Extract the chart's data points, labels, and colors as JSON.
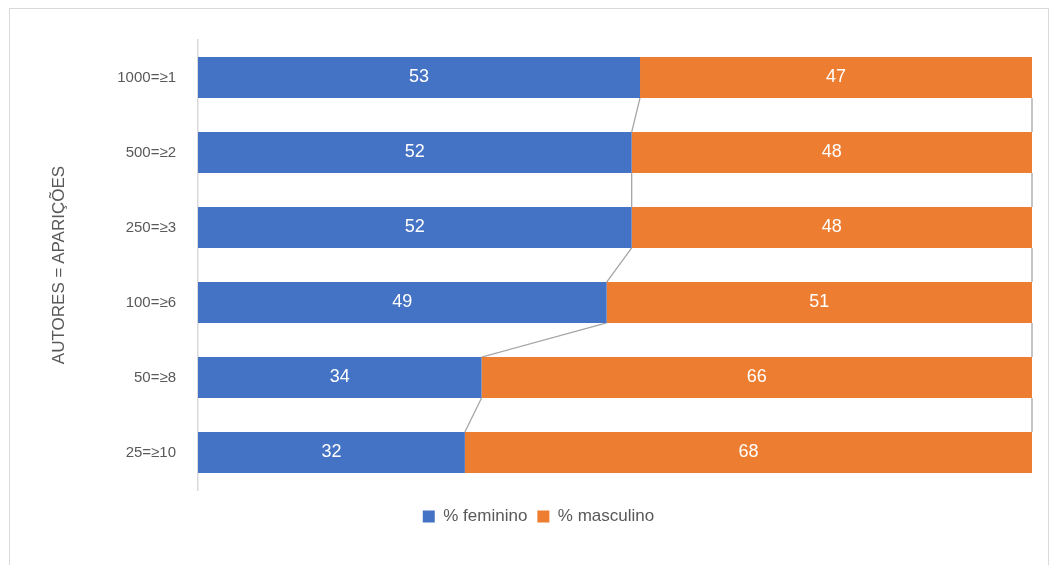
{
  "chart_data": {
    "type": "bar",
    "orientation": "horizontal",
    "stacked": true,
    "ylabel": "AUTORES = APARIÇÕES",
    "categories": [
      "1000=≥1",
      "500=≥2",
      "250=≥3",
      "100=≥6",
      "50=≥8",
      "25=≥10"
    ],
    "series": [
      {
        "name": "% feminino",
        "color": "#4472c4",
        "values": [
          53,
          52,
          52,
          49,
          34,
          32
        ]
      },
      {
        "name": "% masculino",
        "color": "#ed7d31",
        "values": [
          47,
          48,
          48,
          51,
          66,
          68
        ]
      }
    ],
    "xlim": [
      0,
      100
    ],
    "data_labels": true,
    "legend": "bottom",
    "tick_labels": "y"
  }
}
